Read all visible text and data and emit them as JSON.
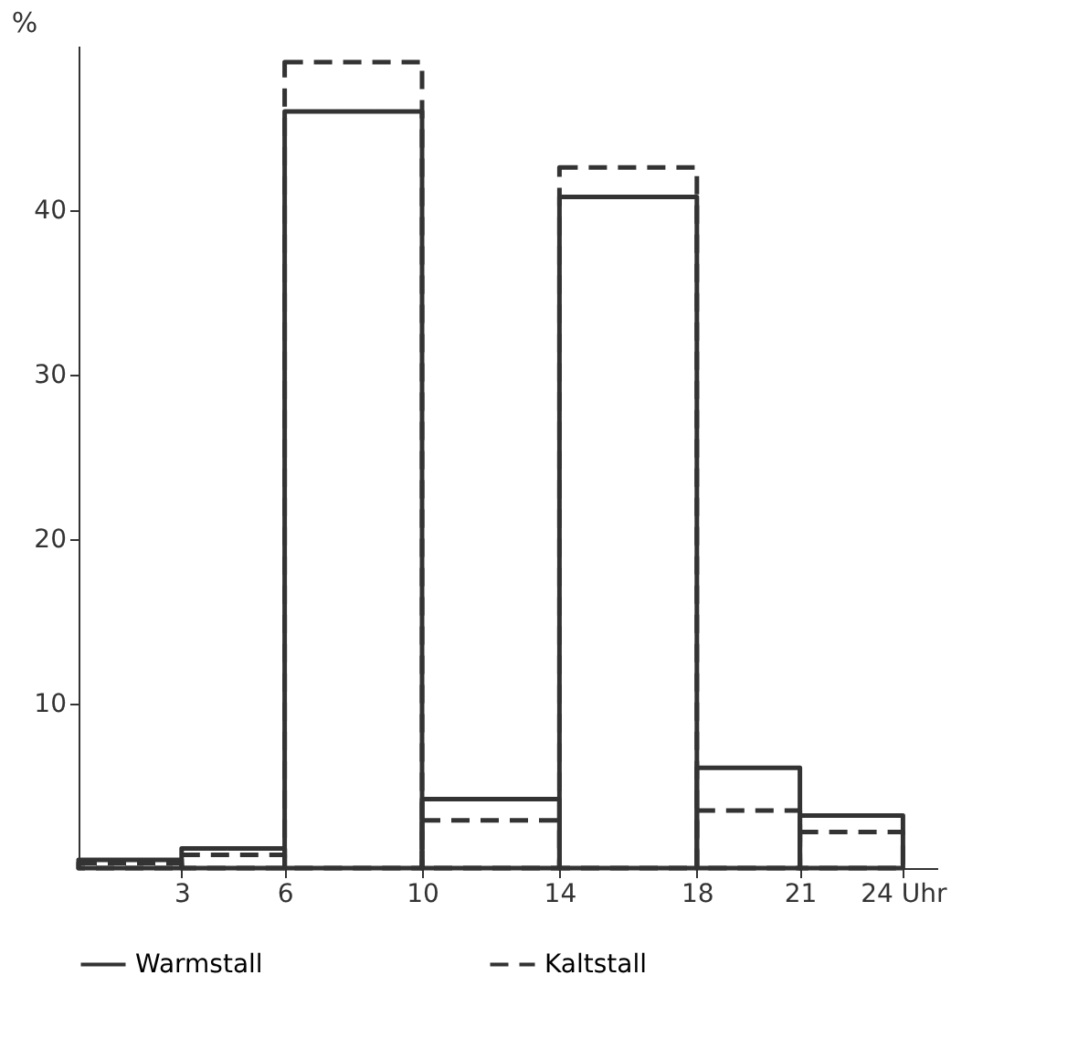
{
  "chart_data": {
    "type": "histogram",
    "ylabel": "%",
    "bins": [
      0,
      3,
      6,
      10,
      14,
      18,
      21,
      24
    ],
    "series": [
      {
        "name": "Warmstall",
        "color": "#333333",
        "line_style": "solid",
        "values": [
          0.5,
          1.2,
          46,
          4.2,
          40.8,
          6.1,
          3.2
        ]
      },
      {
        "name": "Kaltstall",
        "color": "#333333",
        "line_style": "dashed",
        "values": [
          0.3,
          0.8,
          49,
          2.9,
          42.6,
          3.5,
          2.2
        ]
      }
    ],
    "xlim": [
      0,
      25
    ],
    "xticks": [
      3,
      6,
      10,
      14,
      18,
      21,
      {
        "value": 24,
        "label": "24 Uhr"
      }
    ],
    "ylim": [
      0,
      50
    ],
    "yticks": [
      10,
      20,
      30,
      40
    ],
    "grid": false,
    "legend": "bottom"
  }
}
